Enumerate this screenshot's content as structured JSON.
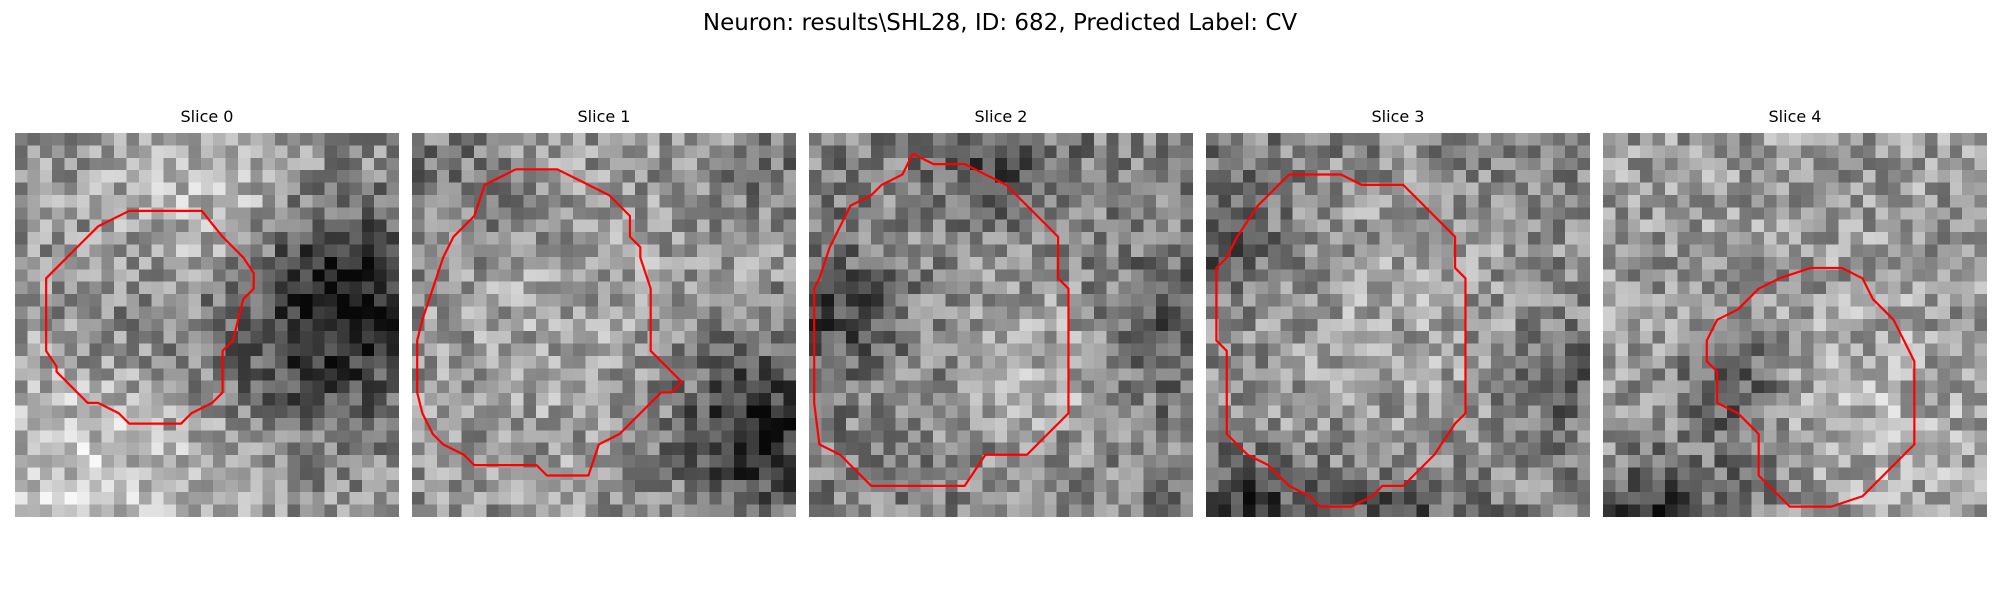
{
  "figure": {
    "title": "Neuron: results\\SHL28, ID: 682, Predicted Label: CV"
  },
  "panels": [
    {
      "label": "Slice 0",
      "contour_color": "#ff0000",
      "contour": [
        [
          13,
          7.5
        ],
        [
          18,
          7.5
        ],
        [
          20,
          10
        ],
        [
          22,
          12
        ],
        [
          23,
          13.5
        ],
        [
          23,
          15
        ],
        [
          22,
          16
        ],
        [
          21,
          20
        ],
        [
          20,
          21
        ],
        [
          20,
          25
        ],
        [
          19,
          26
        ],
        [
          17,
          27
        ],
        [
          16,
          28
        ],
        [
          11,
          28
        ],
        [
          10,
          27
        ],
        [
          8,
          26
        ],
        [
          7,
          26
        ],
        [
          5,
          24
        ],
        [
          4,
          23
        ],
        [
          4,
          22.5
        ],
        [
          3,
          21
        ],
        [
          3,
          14
        ],
        [
          4,
          13
        ],
        [
          6,
          11
        ],
        [
          8,
          9
        ],
        [
          11,
          7.5
        ],
        [
          13,
          7.5
        ]
      ]
    },
    {
      "label": "Slice 1",
      "contour_color": "#ff0000",
      "contour": [
        [
          10,
          3.5
        ],
        [
          14,
          3.5
        ],
        [
          17,
          5
        ],
        [
          19,
          6
        ],
        [
          20,
          7
        ],
        [
          21,
          8
        ],
        [
          21,
          10
        ],
        [
          22,
          11
        ],
        [
          22,
          12
        ],
        [
          23,
          15
        ],
        [
          23,
          21
        ],
        [
          25,
          23
        ],
        [
          26,
          24
        ],
        [
          25,
          25
        ],
        [
          24,
          25
        ],
        [
          22,
          27
        ],
        [
          20,
          29
        ],
        [
          18,
          30
        ],
        [
          17,
          33
        ],
        [
          13,
          33
        ],
        [
          12,
          32
        ],
        [
          6,
          32
        ],
        [
          5,
          31
        ],
        [
          3,
          30
        ],
        [
          2,
          29
        ],
        [
          1,
          27
        ],
        [
          0.5,
          25
        ],
        [
          0.5,
          20
        ],
        [
          1,
          18
        ],
        [
          2,
          15
        ],
        [
          3,
          12
        ],
        [
          4,
          10
        ],
        [
          5,
          9
        ],
        [
          6,
          8
        ],
        [
          7,
          5
        ],
        [
          10,
          3.5
        ]
      ]
    },
    {
      "label": "Slice 2",
      "contour_color": "#ff0000",
      "contour": [
        [
          10,
          2
        ],
        [
          12,
          3
        ],
        [
          15,
          3
        ],
        [
          17,
          4
        ],
        [
          19,
          5
        ],
        [
          20,
          6
        ],
        [
          22,
          8
        ],
        [
          24,
          10
        ],
        [
          24,
          14
        ],
        [
          25,
          15
        ],
        [
          25,
          27
        ],
        [
          23,
          29
        ],
        [
          21,
          31
        ],
        [
          17,
          31
        ],
        [
          15,
          34
        ],
        [
          6,
          34
        ],
        [
          5,
          33
        ],
        [
          4,
          32
        ],
        [
          3,
          31
        ],
        [
          1,
          30
        ],
        [
          0.5,
          26
        ],
        [
          0.5,
          15
        ],
        [
          1,
          14
        ],
        [
          2,
          11
        ],
        [
          3,
          9
        ],
        [
          4,
          7
        ],
        [
          6,
          6
        ],
        [
          7,
          5
        ],
        [
          9,
          4
        ],
        [
          10,
          2
        ]
      ]
    },
    {
      "label": "Slice 3",
      "contour_color": "#ff0000",
      "contour": [
        [
          8,
          4
        ],
        [
          13,
          4
        ],
        [
          15,
          5
        ],
        [
          19,
          5
        ],
        [
          20,
          6
        ],
        [
          21,
          7
        ],
        [
          23,
          9
        ],
        [
          24,
          10
        ],
        [
          24,
          13
        ],
        [
          25,
          14
        ],
        [
          25,
          27
        ],
        [
          24,
          28
        ],
        [
          22,
          31
        ],
        [
          21,
          32
        ],
        [
          20,
          33
        ],
        [
          19,
          34
        ],
        [
          17,
          34
        ],
        [
          16,
          35
        ],
        [
          14,
          36
        ],
        [
          11,
          36
        ],
        [
          10,
          35
        ],
        [
          8,
          34
        ],
        [
          6,
          32
        ],
        [
          4,
          31
        ],
        [
          3,
          30
        ],
        [
          2,
          29
        ],
        [
          2,
          21
        ],
        [
          1,
          20
        ],
        [
          1,
          13
        ],
        [
          2,
          12
        ],
        [
          3,
          10
        ],
        [
          5,
          7
        ],
        [
          6,
          6
        ],
        [
          8,
          4
        ]
      ]
    },
    {
      "label": "Slice 4",
      "contour_color": "#ff0000",
      "contour": [
        [
          20,
          13
        ],
        [
          23,
          13
        ],
        [
          25,
          14
        ],
        [
          26,
          16
        ],
        [
          27,
          17
        ],
        [
          28,
          18
        ],
        [
          29,
          20
        ],
        [
          30,
          22
        ],
        [
          30,
          30
        ],
        [
          29,
          31
        ],
        [
          28,
          32
        ],
        [
          27,
          33
        ],
        [
          26,
          34
        ],
        [
          25,
          35
        ],
        [
          22,
          36
        ],
        [
          18,
          36
        ],
        [
          16,
          34
        ],
        [
          15,
          33
        ],
        [
          15,
          29
        ],
        [
          14,
          28
        ],
        [
          13,
          27
        ],
        [
          11,
          26
        ],
        [
          11,
          23
        ],
        [
          10,
          22
        ],
        [
          10,
          20
        ],
        [
          11,
          18
        ],
        [
          13,
          17
        ],
        [
          15,
          15
        ],
        [
          17,
          14
        ],
        [
          20,
          13
        ]
      ]
    }
  ]
}
